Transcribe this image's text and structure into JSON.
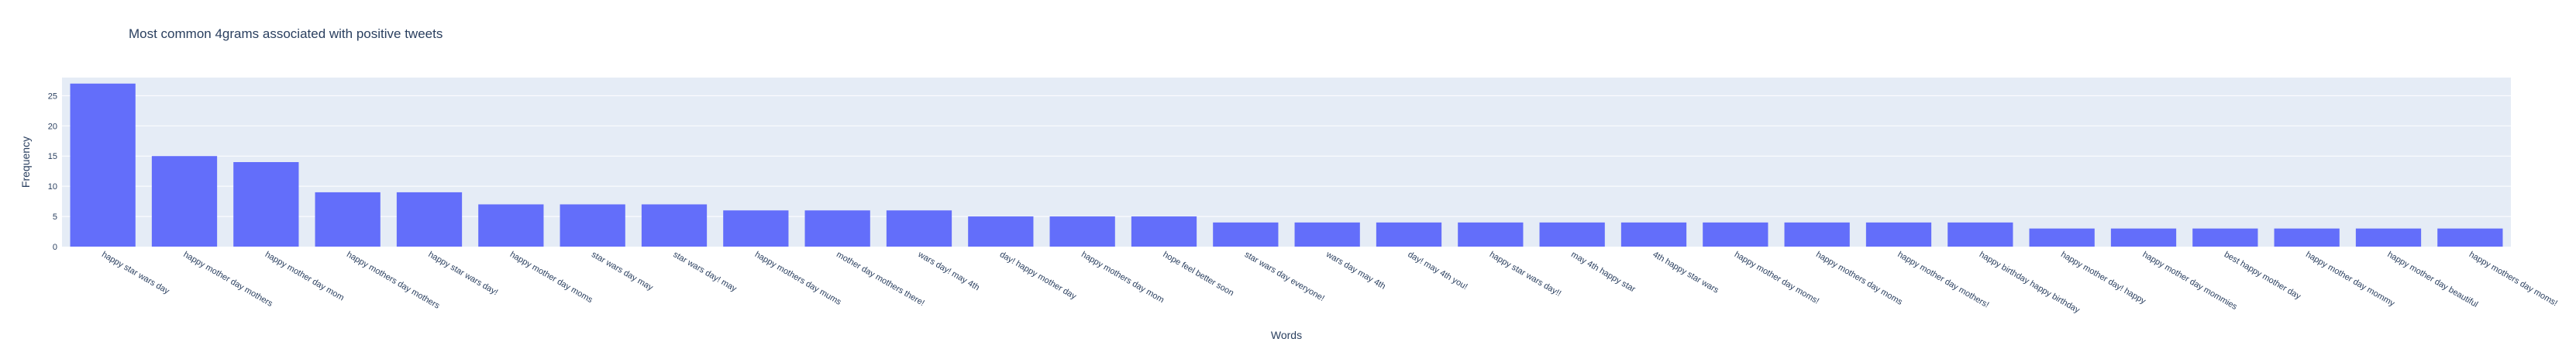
{
  "chart_data": {
    "type": "bar",
    "title": "Most common 4grams associated with positive tweets",
    "xlabel": "Words",
    "ylabel": "Frequency",
    "ylim": [
      0,
      28
    ],
    "yticks": [
      0,
      5,
      10,
      15,
      20,
      25
    ],
    "grid": true,
    "legend": "none",
    "categories": [
      "happy star wars day",
      "happy mother day mothers",
      "happy mother day mom",
      "happy mothers day mothers",
      "happy star wars day!",
      "happy mother day moms",
      "star wars day may",
      "star wars day! may",
      "happy mothers day mums",
      "mother day mothers there!",
      "wars day! may 4th",
      "day! happy mother day",
      "happy mothers day mom",
      "hope feel better soon",
      "star wars day everyone!",
      "wars day may 4th",
      "day! may 4th you!",
      "happy star wars day!!",
      "may 4th happy star",
      "4th happy star wars",
      "happy mother day moms!",
      "happy mothers day moms",
      "happy mother day mothers!",
      "happy birthday happy birthday",
      "happy mother day! happy",
      "happy mother day mommies",
      "best happy mother day",
      "happy mother day mommy",
      "happy mother day beautiful",
      "happy mothers day moms!"
    ],
    "values": [
      27,
      15,
      14,
      9,
      9,
      7,
      7,
      7,
      6,
      6,
      6,
      5,
      5,
      5,
      4,
      4,
      4,
      4,
      4,
      4,
      4,
      4,
      4,
      4,
      3,
      3,
      3,
      3,
      3,
      3
    ],
    "colors": {
      "bar": "#636efa",
      "plot_bg": "#e5ecf6",
      "grid": "#ffffff",
      "text": "#2a3f5f"
    }
  }
}
